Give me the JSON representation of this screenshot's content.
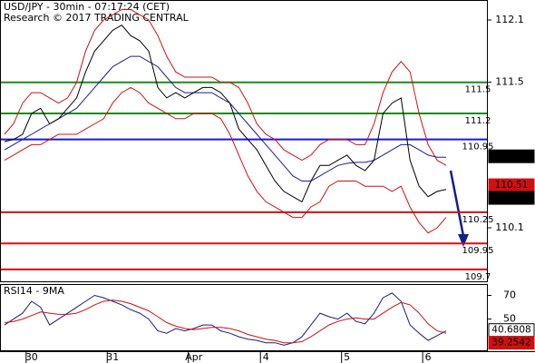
{
  "chart_data": [
    {
      "type": "line",
      "title": "USD/JPY - 30min - 07:17:24 (CET)",
      "subtitle": "Research © 2017 TRADING CENTRAL",
      "categories": [
        null,
        null,
        null,
        "30",
        null,
        null,
        null,
        null,
        null,
        null,
        null,
        null,
        "31",
        null,
        null,
        null,
        null,
        null,
        null,
        null,
        null,
        "Apr",
        null,
        null,
        null,
        null,
        null,
        null,
        null,
        "4",
        null,
        null,
        null,
        null,
        null,
        null,
        null,
        null,
        "5",
        null,
        null,
        null,
        null,
        null,
        null,
        null,
        null,
        "6",
        null,
        null
      ],
      "ylim": [
        109.585,
        112.292
      ],
      "yticks": [
        112.1,
        111.5,
        110.1
      ],
      "series": [
        {
          "color": "#d01010",
          "values": [
            111.0,
            111.1,
            111.3,
            111.4,
            111.4,
            111.35,
            111.3,
            111.35,
            111.5,
            111.8,
            112.0,
            112.1,
            112.15,
            112.2,
            112.2,
            112.15,
            112.1,
            111.95,
            111.75,
            111.6,
            111.55,
            111.55,
            111.55,
            111.55,
            111.5,
            111.5,
            111.45,
            111.3,
            111.1,
            111.0,
            110.95,
            110.85,
            110.8,
            110.75,
            110.8,
            110.9,
            110.95,
            110.95,
            110.95,
            110.9,
            110.9,
            111.1,
            111.4,
            111.6,
            111.7,
            111.6,
            111.2,
            110.9,
            110.75,
            110.7
          ]
        },
        {
          "color": "#d01010",
          "values": [
            110.75,
            110.8,
            110.85,
            110.9,
            110.9,
            110.95,
            111.0,
            111.0,
            111.0,
            111.05,
            111.1,
            111.15,
            111.3,
            111.4,
            111.45,
            111.4,
            111.3,
            111.25,
            111.2,
            111.15,
            111.15,
            111.2,
            111.2,
            111.2,
            111.15,
            111.0,
            110.8,
            110.6,
            110.45,
            110.35,
            110.3,
            110.25,
            110.2,
            110.2,
            110.3,
            110.35,
            110.5,
            110.55,
            110.55,
            110.55,
            110.5,
            110.5,
            110.5,
            110.45,
            110.5,
            110.3,
            110.15,
            110.05,
            110.1,
            110.2
          ]
        },
        {
          "color": "#1a1aa0",
          "values": [
            110.85,
            110.9,
            110.95,
            111.0,
            111.05,
            111.1,
            111.15,
            111.2,
            111.25,
            111.35,
            111.45,
            111.55,
            111.65,
            111.7,
            111.75,
            111.75,
            111.7,
            111.65,
            111.55,
            111.45,
            111.4,
            111.4,
            111.4,
            111.4,
            111.35,
            111.3,
            111.2,
            111.1,
            111.0,
            110.9,
            110.8,
            110.7,
            110.6,
            110.55,
            110.55,
            110.6,
            110.65,
            110.7,
            110.72,
            110.73,
            110.73,
            110.75,
            110.8,
            110.85,
            110.9,
            110.9,
            110.85,
            110.8,
            110.78,
            110.78
          ]
        },
        {
          "color": "#000000",
          "values": [
            110.93,
            110.95,
            111.0,
            111.2,
            111.25,
            111.1,
            111.15,
            111.25,
            111.35,
            111.6,
            111.8,
            111.9,
            112.0,
            112.05,
            111.95,
            111.9,
            111.8,
            111.45,
            111.35,
            111.4,
            111.35,
            111.4,
            111.45,
            111.45,
            111.4,
            111.3,
            111.05,
            110.95,
            110.85,
            110.7,
            110.55,
            110.45,
            110.4,
            110.35,
            110.55,
            110.7,
            110.7,
            110.75,
            110.8,
            110.7,
            110.65,
            110.75,
            111.2,
            111.3,
            111.35,
            110.75,
            110.5,
            110.4,
            110.45,
            110.47
          ]
        }
      ],
      "levels": [
        111.5,
        111.2,
        110.95,
        110.25,
        109.95,
        109.7
      ],
      "level_colors": [
        "#1a8c1a",
        "#1a8c1a",
        "#1a1ad0",
        "#d01010",
        "#d01010",
        "#d01010"
      ],
      "markers": [
        110.788,
        110.51,
        110.487
      ],
      "marker_colors": [
        "#000000",
        "#d01010",
        "#000000"
      ]
    },
    {
      "type": "line",
      "title": "RSI14 - 9MA",
      "ylim": [
        23.6,
        79.6
      ],
      "yticks": [
        70,
        50
      ],
      "series": [
        {
          "color": "#1a1a80",
          "values": [
            45,
            50,
            55,
            65,
            60,
            45,
            50,
            55,
            60,
            65,
            70,
            68,
            65,
            62,
            58,
            55,
            50,
            40,
            38,
            42,
            40,
            42,
            45,
            45,
            40,
            38,
            35,
            33,
            32,
            30,
            30,
            28,
            30,
            35,
            45,
            55,
            52,
            50,
            55,
            48,
            46,
            55,
            68,
            72,
            65,
            45,
            38,
            32,
            36,
            40
          ]
        },
        {
          "color": "#d01010",
          "values": [
            47,
            48,
            50,
            53,
            56,
            55,
            54,
            54,
            55,
            58,
            62,
            65,
            66,
            65,
            63,
            60,
            57,
            52,
            47,
            44,
            42,
            41,
            42,
            43,
            43,
            42,
            40,
            37,
            35,
            33,
            32,
            30,
            30,
            31,
            35,
            40,
            45,
            48,
            50,
            51,
            50,
            50,
            55,
            60,
            64,
            62,
            55,
            46,
            40,
            38
          ]
        }
      ],
      "markers": [
        40.6808,
        39.2542
      ],
      "marker_colors": [
        "#ffffff",
        "#d01010"
      ]
    }
  ]
}
